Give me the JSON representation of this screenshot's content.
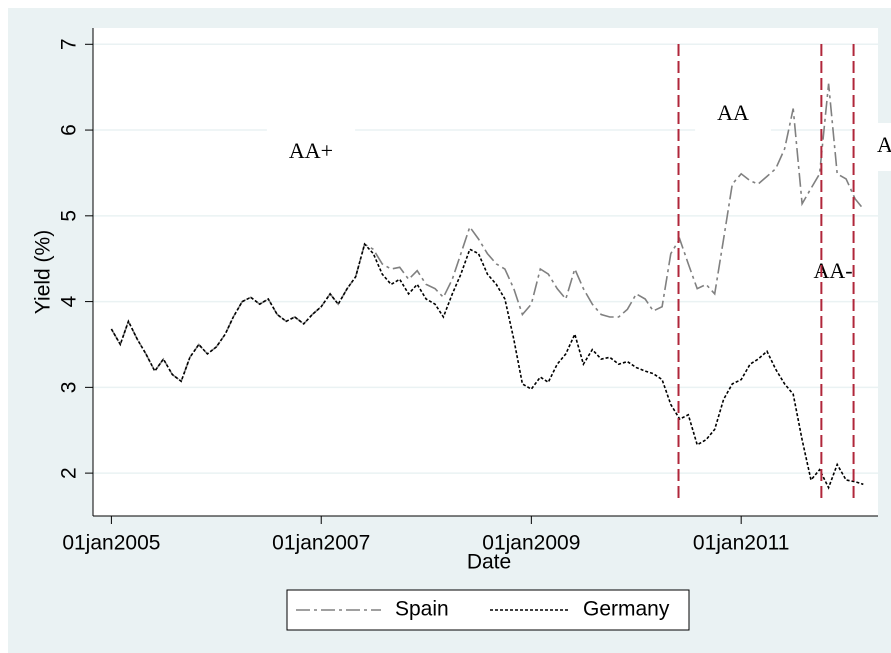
{
  "chart_data": {
    "type": "line",
    "xlabel": "Date",
    "ylabel": "Yield (%)",
    "x": [
      "2005-01-01",
      "2005-02-01",
      "2005-03-01",
      "2005-04-01",
      "2005-05-01",
      "2005-06-01",
      "2005-07-01",
      "2005-08-01",
      "2005-09-01",
      "2005-10-01",
      "2005-11-01",
      "2005-12-01",
      "2006-01-01",
      "2006-02-01",
      "2006-03-01",
      "2006-04-01",
      "2006-05-01",
      "2006-06-01",
      "2006-07-01",
      "2006-08-01",
      "2006-09-01",
      "2006-10-01",
      "2006-11-01",
      "2006-12-01",
      "2007-01-01",
      "2007-02-01",
      "2007-03-01",
      "2007-04-01",
      "2007-05-01",
      "2007-06-01",
      "2007-07-01",
      "2007-08-01",
      "2007-09-01",
      "2007-10-01",
      "2007-11-01",
      "2007-12-01",
      "2008-01-01",
      "2008-02-01",
      "2008-03-01",
      "2008-04-01",
      "2008-05-01",
      "2008-06-01",
      "2008-07-01",
      "2008-08-01",
      "2008-09-01",
      "2008-10-01",
      "2008-11-01",
      "2008-12-01",
      "2009-01-01",
      "2009-02-01",
      "2009-03-01",
      "2009-04-01",
      "2009-05-01",
      "2009-06-01",
      "2009-07-01",
      "2009-08-01",
      "2009-09-01",
      "2009-10-01",
      "2009-11-01",
      "2009-12-01",
      "2010-01-01",
      "2010-02-01",
      "2010-03-01",
      "2010-04-01",
      "2010-05-01",
      "2010-06-01",
      "2010-07-01",
      "2010-08-01",
      "2010-09-01",
      "2010-10-01",
      "2010-11-01",
      "2010-12-01",
      "2011-01-01",
      "2011-02-01",
      "2011-03-01",
      "2011-04-01",
      "2011-05-01",
      "2011-06-01",
      "2011-07-01",
      "2011-08-01",
      "2011-09-01",
      "2011-10-01",
      "2011-11-01",
      "2011-12-01",
      "2012-01-01",
      "2012-02-01",
      "2012-03-01"
    ],
    "series": [
      {
        "name": "Spain",
        "color": "#808080",
        "dash": "14 4 3 4",
        "values": [
          3.68,
          3.5,
          3.77,
          3.56,
          3.39,
          3.19,
          3.33,
          3.15,
          3.07,
          3.35,
          3.5,
          3.39,
          3.47,
          3.62,
          3.82,
          4.0,
          4.05,
          3.97,
          4.03,
          3.85,
          3.77,
          3.82,
          3.74,
          3.85,
          3.94,
          4.09,
          3.97,
          4.15,
          4.29,
          4.67,
          4.61,
          4.44,
          4.38,
          4.4,
          4.26,
          4.36,
          4.2,
          4.15,
          4.05,
          4.26,
          4.56,
          4.87,
          4.73,
          4.56,
          4.44,
          4.38,
          4.15,
          3.85,
          3.97,
          4.38,
          4.32,
          4.15,
          4.03,
          4.38,
          4.15,
          3.97,
          3.85,
          3.82,
          3.82,
          3.91,
          4.09,
          4.03,
          3.89,
          3.94,
          4.56,
          4.73,
          4.44,
          4.15,
          4.2,
          4.09,
          4.73,
          5.37,
          5.49,
          5.41,
          5.37,
          5.46,
          5.55,
          5.78,
          6.25,
          5.14,
          5.32,
          5.49,
          6.54,
          5.49,
          5.43,
          5.2,
          5.08
        ]
      },
      {
        "name": "Germany",
        "color": "#000000",
        "dash": "3 2",
        "values": [
          3.68,
          3.5,
          3.77,
          3.56,
          3.39,
          3.19,
          3.33,
          3.15,
          3.07,
          3.35,
          3.5,
          3.39,
          3.47,
          3.62,
          3.82,
          4.0,
          4.05,
          3.97,
          4.03,
          3.85,
          3.77,
          3.82,
          3.74,
          3.85,
          3.94,
          4.09,
          3.97,
          4.15,
          4.29,
          4.67,
          4.56,
          4.32,
          4.2,
          4.26,
          4.09,
          4.2,
          4.03,
          3.97,
          3.82,
          4.09,
          4.32,
          4.61,
          4.56,
          4.32,
          4.2,
          4.03,
          3.56,
          3.04,
          2.98,
          3.12,
          3.06,
          3.27,
          3.39,
          3.62,
          3.27,
          3.44,
          3.33,
          3.35,
          3.27,
          3.3,
          3.23,
          3.19,
          3.16,
          3.09,
          2.8,
          2.63,
          2.68,
          2.33,
          2.39,
          2.51,
          2.86,
          3.04,
          3.09,
          3.27,
          3.33,
          3.42,
          3.21,
          3.04,
          2.92,
          2.39,
          1.92,
          2.04,
          1.83,
          2.1,
          1.92,
          1.9,
          1.87
        ]
      }
    ],
    "xlim": [
      "2004-10-29",
      "2012-04-21"
    ],
    "xticks": [
      {
        "value": "2005-01-01",
        "label": "01jan2005"
      },
      {
        "value": "2007-01-01",
        "label": "01jan2007"
      },
      {
        "value": "2009-01-01",
        "label": "01jan2009"
      },
      {
        "value": "2011-01-01",
        "label": "01jan2011"
      }
    ],
    "ylim": [
      1.5,
      7.19
    ],
    "yticks": [
      2,
      3,
      4,
      5,
      6,
      7
    ],
    "grid": true,
    "vlines": [
      "2010-05-28",
      "2011-10-07",
      "2012-01-27"
    ],
    "vline_color": "#b0263a",
    "annotations": [
      "AA+",
      "AA",
      "AA-",
      "A"
    ],
    "legend": "bottom"
  }
}
